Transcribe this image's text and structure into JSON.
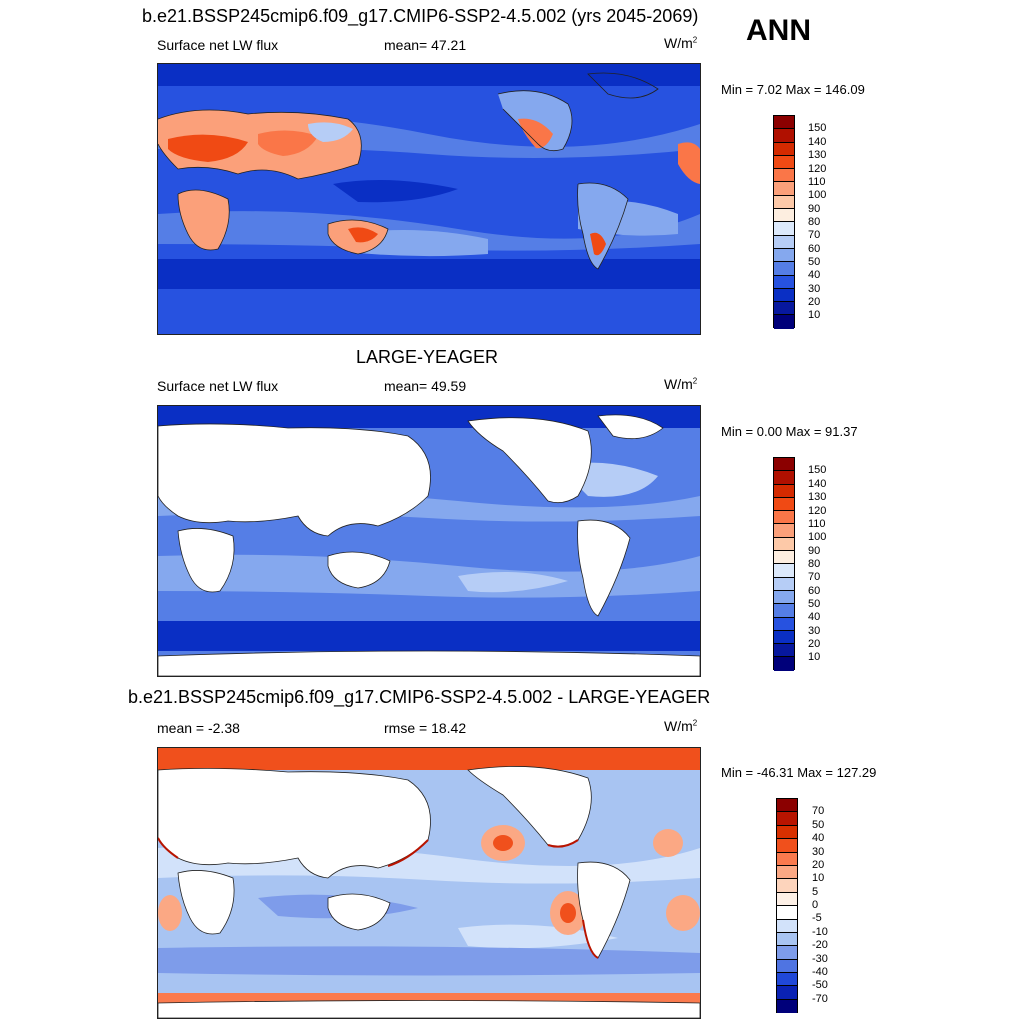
{
  "header": {
    "title_top": "b.e21.BSSP245cmip6.f09_g17.CMIP6-SSP2-4.5.002 (yrs 2045-2069)",
    "season": "ANN"
  },
  "panels": [
    {
      "id": "model",
      "title": "",
      "left_label": "Surface net LW flux",
      "center_label": "mean=  47.21",
      "units_base": "W/m",
      "units_exp": "2",
      "minmax": "Min =   7.02 Max = 146.09",
      "colorbar_labels": [
        "150",
        "140",
        "130",
        "120",
        "110",
        "100",
        "90",
        "80",
        "70",
        "60",
        "50",
        "40",
        "30",
        "20",
        "10"
      ],
      "colorbar_colors": [
        "#8b0000",
        "#b01000",
        "#d42a00",
        "#f04a14",
        "#fa7648",
        "#fba07a",
        "#fdc9a8",
        "#fdeee0",
        "#dce9fb",
        "#b6cdf6",
        "#85a8ee",
        "#557ee6",
        "#2752e0",
        "#0a2fc4",
        "#07189e",
        "#00007a"
      ]
    },
    {
      "id": "obs",
      "title": "LARGE-YEAGER",
      "left_label": "Surface net LW flux",
      "center_label": "mean=  49.59",
      "units_base": "W/m",
      "units_exp": "2",
      "minmax": "Min =   0.00 Max =  91.37",
      "colorbar_labels": [
        "150",
        "140",
        "130",
        "120",
        "110",
        "100",
        "90",
        "80",
        "70",
        "60",
        "50",
        "40",
        "30",
        "20",
        "10"
      ],
      "colorbar_colors": [
        "#8b0000",
        "#b01000",
        "#d42a00",
        "#f04a14",
        "#fa7648",
        "#fba07a",
        "#fdc9a8",
        "#fdeee0",
        "#dce9fb",
        "#b6cdf6",
        "#85a8ee",
        "#557ee6",
        "#2752e0",
        "#0a2fc4",
        "#07189e",
        "#00007a"
      ]
    },
    {
      "id": "diff",
      "title": "b.e21.BSSP245cmip6.f09_g17.CMIP6-SSP2-4.5.002 - LARGE-YEAGER",
      "left_label": "mean =  -2.38",
      "center_label": "rmse =  18.42",
      "units_base": "W/m",
      "units_exp": "2",
      "minmax": "Min = -46.31 Max = 127.29",
      "colorbar_labels": [
        "70",
        "50",
        "40",
        "30",
        "20",
        "10",
        "5",
        "0",
        "-5",
        "-10",
        "-20",
        "-30",
        "-40",
        "-50",
        "-70"
      ],
      "colorbar_colors": [
        "#8b0000",
        "#b81400",
        "#d83000",
        "#f0501c",
        "#fa7a4e",
        "#fba884",
        "#fdd4bc",
        "#fdf0e6",
        "#ffffff",
        "#d2e2fa",
        "#a8c4f2",
        "#7e9cea",
        "#4f74e2",
        "#2048d8",
        "#0a22b4",
        "#00007a"
      ]
    }
  ]
}
